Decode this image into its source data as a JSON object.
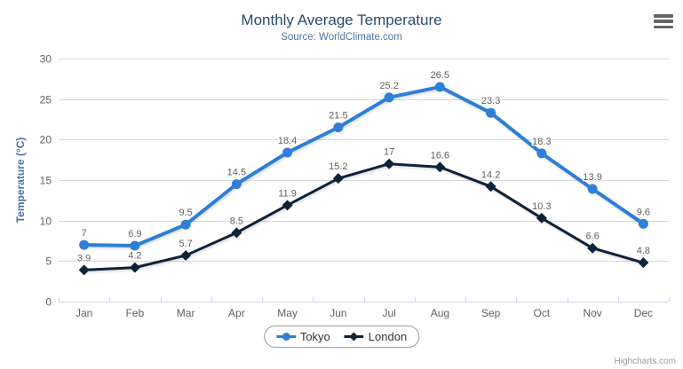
{
  "header": {
    "title": "Monthly Average Temperature",
    "subtitle": "Source: WorldClimate.com"
  },
  "chart_data": {
    "type": "line",
    "title": "Monthly Average Temperature",
    "subtitle": "Source: WorldClimate.com",
    "categories": [
      "Jan",
      "Feb",
      "Mar",
      "Apr",
      "May",
      "Jun",
      "Jul",
      "Aug",
      "Sep",
      "Oct",
      "Nov",
      "Dec"
    ],
    "series": [
      {
        "name": "Tokyo",
        "color": "#2f7ed8",
        "marker": "circle",
        "line_width": 4,
        "values": [
          7,
          6.9,
          9.5,
          14.5,
          18.4,
          21.5,
          25.2,
          26.5,
          23.3,
          18.3,
          13.9,
          9.6
        ]
      },
      {
        "name": "London",
        "color": "#0d233a",
        "marker": "diamond",
        "line_width": 3,
        "values": [
          3.9,
          4.2,
          5.7,
          8.5,
          11.9,
          15.2,
          17,
          16.6,
          14.2,
          10.3,
          6.6,
          4.8
        ]
      }
    ],
    "xlabel": "",
    "ylabel": "Temperature (°C)",
    "ylim": [
      0,
      30
    ],
    "yticks": [
      0,
      5,
      10,
      15,
      20,
      25,
      30
    ],
    "grid": true,
    "data_labels": true,
    "legend_position": "bottom",
    "colors": {
      "grid": "#d8d8d8",
      "axis_line": "#ccd6eb",
      "axis_labels": "#606060",
      "data_labels": "#606060",
      "title": "#274b6d",
      "subtitle": "#4d759e",
      "axis_title": "#4572a7"
    }
  },
  "legend": {
    "items": [
      {
        "label": "Tokyo"
      },
      {
        "label": "London"
      }
    ]
  },
  "credits": {
    "label": "Highcharts.com"
  }
}
